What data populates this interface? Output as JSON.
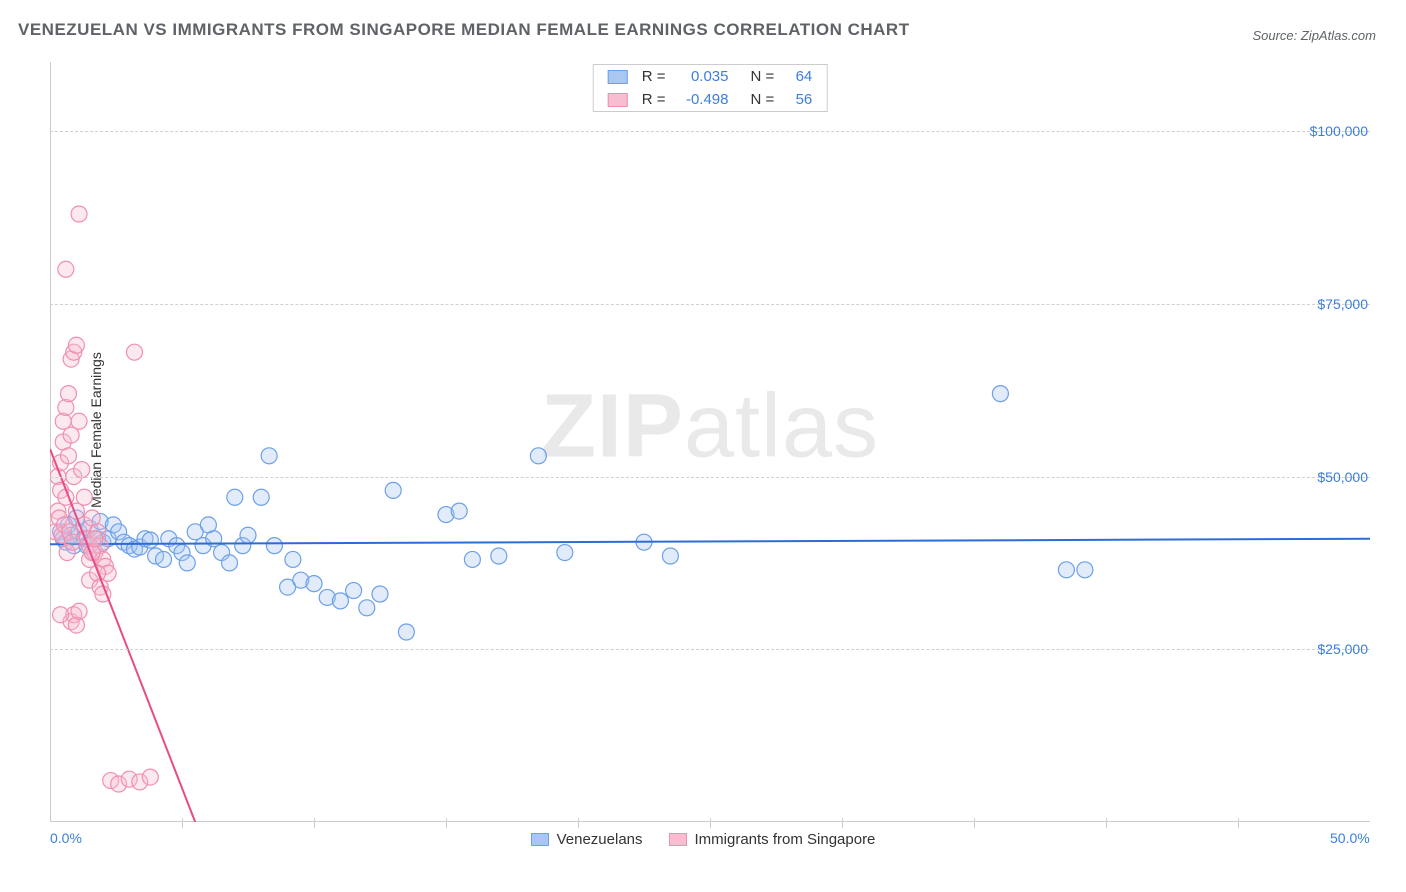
{
  "title": "VENEZUELAN VS IMMIGRANTS FROM SINGAPORE MEDIAN FEMALE EARNINGS CORRELATION CHART",
  "source_prefix": "Source: ",
  "source": "ZipAtlas.com",
  "ylabel": "Median Female Earnings",
  "watermark_bold": "ZIP",
  "watermark_rest": "atlas",
  "chart": {
    "type": "scatter",
    "xlim": [
      0,
      50
    ],
    "ylim": [
      0,
      110000
    ],
    "x_tick_labels": {
      "0": "0.0%",
      "50": "50.0%"
    },
    "x_minor_ticks": [
      5,
      10,
      15,
      20,
      25,
      30,
      35,
      40,
      45
    ],
    "y_ticks": [
      25000,
      50000,
      75000,
      100000
    ],
    "y_tick_labels": {
      "25000": "$25,000",
      "50000": "$50,000",
      "75000": "$75,000",
      "100000": "$100,000"
    },
    "grid_color": "#d0d0d0",
    "axis_color": "#cccccc",
    "background_color": "#ffffff",
    "tick_label_color": "#3b7de0",
    "marker_radius": 8,
    "marker_stroke_width": 1.2,
    "fill_opacity": 0.35,
    "series": [
      {
        "name": "Venezuelans",
        "color_stroke": "#6ca0e8",
        "color_fill": "#a9c7f0",
        "trend_color": "#2d6cd6",
        "R": "0.035",
        "N": "64",
        "trend": {
          "x1": 0,
          "y1": 40200,
          "x2": 50,
          "y2": 41000
        },
        "points": [
          [
            0.4,
            42000
          ],
          [
            0.5,
            41000
          ],
          [
            0.6,
            40500
          ],
          [
            0.7,
            43000
          ],
          [
            0.8,
            41500
          ],
          [
            0.9,
            40000
          ],
          [
            1.0,
            44000
          ],
          [
            1.1,
            42000
          ],
          [
            1.3,
            41000
          ],
          [
            1.4,
            40000
          ],
          [
            1.5,
            42500
          ],
          [
            1.6,
            39000
          ],
          [
            1.8,
            41000
          ],
          [
            1.9,
            43500
          ],
          [
            2.0,
            40500
          ],
          [
            2.2,
            41000
          ],
          [
            2.4,
            43000
          ],
          [
            2.6,
            42000
          ],
          [
            2.8,
            40500
          ],
          [
            3.0,
            40000
          ],
          [
            3.2,
            39500
          ],
          [
            3.4,
            39800
          ],
          [
            3.6,
            41000
          ],
          [
            3.8,
            40800
          ],
          [
            4.0,
            38500
          ],
          [
            4.3,
            38000
          ],
          [
            4.5,
            41000
          ],
          [
            4.8,
            40000
          ],
          [
            5.0,
            39000
          ],
          [
            5.2,
            37500
          ],
          [
            5.5,
            42000
          ],
          [
            5.8,
            40000
          ],
          [
            6.0,
            43000
          ],
          [
            6.2,
            41000
          ],
          [
            6.5,
            39000
          ],
          [
            6.8,
            37500
          ],
          [
            7.0,
            47000
          ],
          [
            7.3,
            40000
          ],
          [
            7.5,
            41500
          ],
          [
            8.0,
            47000
          ],
          [
            8.3,
            53000
          ],
          [
            8.5,
            40000
          ],
          [
            9.0,
            34000
          ],
          [
            9.2,
            38000
          ],
          [
            9.5,
            35000
          ],
          [
            10.0,
            34500
          ],
          [
            10.5,
            32500
          ],
          [
            11.0,
            32000
          ],
          [
            11.5,
            33500
          ],
          [
            12.0,
            31000
          ],
          [
            12.5,
            33000
          ],
          [
            13.0,
            48000
          ],
          [
            13.5,
            27500
          ],
          [
            15.0,
            44500
          ],
          [
            15.5,
            45000
          ],
          [
            16.0,
            38000
          ],
          [
            17.0,
            38500
          ],
          [
            18.5,
            53000
          ],
          [
            19.5,
            39000
          ],
          [
            22.5,
            40500
          ],
          [
            23.5,
            38500
          ],
          [
            36.0,
            62000
          ],
          [
            38.5,
            36500
          ],
          [
            39.2,
            36500
          ]
        ]
      },
      {
        "name": "Immigrants from Singapore",
        "color_stroke": "#f08fb0",
        "color_fill": "#f7bdd0",
        "trend_color": "#e84c88",
        "R": "-0.498",
        "N": "56",
        "trend": {
          "x1": 0,
          "y1": 54000,
          "x2": 5.5,
          "y2": 0
        },
        "points": [
          [
            0.2,
            42000
          ],
          [
            0.3,
            45000
          ],
          [
            0.3,
            50000
          ],
          [
            0.4,
            52000
          ],
          [
            0.4,
            48000
          ],
          [
            0.5,
            58000
          ],
          [
            0.5,
            55000
          ],
          [
            0.6,
            60000
          ],
          [
            0.6,
            47000
          ],
          [
            0.7,
            62000
          ],
          [
            0.7,
            53000
          ],
          [
            0.8,
            67000
          ],
          [
            0.8,
            56000
          ],
          [
            0.9,
            68000
          ],
          [
            0.9,
            50000
          ],
          [
            1.0,
            69000
          ],
          [
            1.0,
            45000
          ],
          [
            1.1,
            58000
          ],
          [
            1.2,
            51000
          ],
          [
            1.3,
            47000
          ],
          [
            1.3,
            43000
          ],
          [
            1.4,
            41000
          ],
          [
            1.5,
            40000
          ],
          [
            1.5,
            38000
          ],
          [
            1.6,
            44000
          ],
          [
            1.7,
            39000
          ],
          [
            1.8,
            42000
          ],
          [
            1.9,
            40000
          ],
          [
            2.0,
            38000
          ],
          [
            2.1,
            37000
          ],
          [
            2.2,
            36000
          ],
          [
            1.1,
            88000
          ],
          [
            0.6,
            80000
          ],
          [
            3.2,
            68000
          ],
          [
            0.8,
            29000
          ],
          [
            0.9,
            30000
          ],
          [
            1.0,
            28500
          ],
          [
            1.1,
            30500
          ],
          [
            0.4,
            30000
          ],
          [
            2.3,
            6000
          ],
          [
            2.6,
            5500
          ],
          [
            3.0,
            6200
          ],
          [
            3.4,
            5800
          ],
          [
            3.8,
            6500
          ],
          [
            1.5,
            35000
          ],
          [
            1.6,
            39000
          ],
          [
            1.7,
            41000
          ],
          [
            1.8,
            36000
          ],
          [
            1.9,
            34000
          ],
          [
            2.0,
            33000
          ],
          [
            0.35,
            44000
          ],
          [
            0.45,
            41500
          ],
          [
            0.55,
            43000
          ],
          [
            0.65,
            39000
          ],
          [
            0.75,
            42000
          ],
          [
            0.85,
            40500
          ]
        ]
      }
    ]
  },
  "stats_labels": {
    "R": "R =",
    "N": "N ="
  },
  "legend_labels": [
    "Venezuelans",
    "Immigrants from Singapore"
  ]
}
